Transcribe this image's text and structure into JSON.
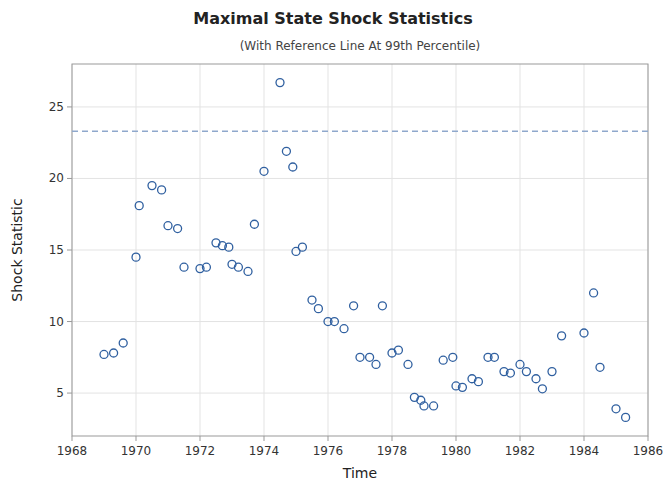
{
  "chart_data": {
    "type": "scatter",
    "title": "Maximal State Shock Statistics",
    "subtitle": "(With Reference Line At 99th Percentile)",
    "x_label": "Time",
    "y_label": "Shock Statistic",
    "x": [
      1969.0,
      1969.3,
      1969.6,
      1970.0,
      1970.1,
      1970.5,
      1970.8,
      1971.0,
      1971.3,
      1971.5,
      1972.0,
      1972.2,
      1972.5,
      1972.7,
      1972.9,
      1973.0,
      1973.2,
      1973.5,
      1973.7,
      1974.0,
      1974.5,
      1974.7,
      1974.9,
      1975.0,
      1975.2,
      1975.5,
      1975.7,
      1976.0,
      1976.2,
      1976.5,
      1976.8,
      1977.0,
      1977.3,
      1977.5,
      1977.7,
      1978.0,
      1978.2,
      1978.5,
      1978.7,
      1978.9,
      1979.0,
      1979.3,
      1979.6,
      1979.9,
      1980.0,
      1980.2,
      1980.5,
      1980.7,
      1981.0,
      1981.2,
      1981.5,
      1981.7,
      1982.0,
      1982.2,
      1982.5,
      1982.7,
      1983.0,
      1983.3,
      1984.0,
      1984.3,
      1984.5,
      1985.0,
      1985.3
    ],
    "values": [
      7.7,
      7.8,
      8.5,
      14.5,
      18.1,
      19.5,
      19.2,
      16.7,
      16.5,
      13.8,
      13.7,
      13.8,
      15.5,
      15.3,
      15.2,
      14.0,
      13.8,
      13.5,
      16.8,
      20.5,
      26.7,
      21.9,
      20.8,
      14.9,
      15.2,
      11.5,
      10.9,
      10.0,
      10.0,
      9.5,
      11.1,
      7.5,
      7.5,
      7.0,
      11.1,
      7.8,
      8.0,
      7.0,
      4.7,
      4.5,
      4.1,
      4.1,
      7.3,
      7.5,
      5.5,
      5.4,
      6.0,
      5.8,
      7.5,
      7.5,
      6.5,
      6.4,
      7.0,
      6.5,
      6.0,
      5.3,
      6.5,
      9.0,
      9.2,
      12.0,
      6.8,
      3.9,
      3.3
    ],
    "color": "#3060a0",
    "marker": "open-circle",
    "reference_line": {
      "value": 23.3,
      "color": "#8fa8cc",
      "line_style": "dashed"
    },
    "xlim": [
      1968,
      1986
    ],
    "ylim": [
      2,
      28
    ],
    "xticks": [
      1968,
      1970,
      1972,
      1974,
      1976,
      1978,
      1980,
      1982,
      1984,
      1986
    ],
    "yticks": [
      5,
      10,
      15,
      20,
      25
    ],
    "grid": true
  }
}
